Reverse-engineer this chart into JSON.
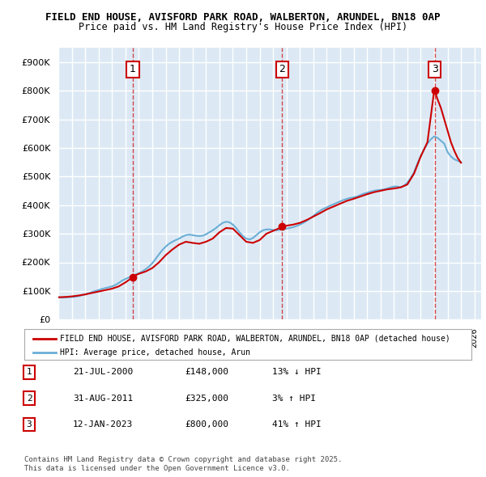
{
  "title_line1": "FIELD END HOUSE, AVISFORD PARK ROAD, WALBERTON, ARUNDEL, BN18 0AP",
  "title_line2": "Price paid vs. HM Land Registry's House Price Index (HPI)",
  "ylabel": "£",
  "ylim": [
    0,
    950000
  ],
  "yticks": [
    0,
    100000,
    200000,
    300000,
    400000,
    500000,
    600000,
    700000,
    800000,
    900000
  ],
  "ytick_labels": [
    "£0",
    "£100K",
    "£200K",
    "£300K",
    "£400K",
    "£500K",
    "£600K",
    "£700K",
    "£800K",
    "£900K"
  ],
  "xlim_start": 1995.0,
  "xlim_end": 2026.5,
  "background_color": "#ffffff",
  "plot_bg_color": "#dce9f5",
  "grid_color": "#ffffff",
  "transactions": [
    {
      "year": 2000.55,
      "price": 148000,
      "label": "1",
      "direction": "↓",
      "pct": "13%",
      "date": "21-JUL-2000"
    },
    {
      "year": 2011.67,
      "price": 325000,
      "label": "2",
      "direction": "↑",
      "pct": "3%",
      "date": "31-AUG-2011"
    },
    {
      "year": 2023.04,
      "price": 800000,
      "label": "3",
      "direction": "↑",
      "pct": "41%",
      "date": "12-JAN-2023"
    }
  ],
  "hpi_color": "#6baed6",
  "price_color": "#cc0000",
  "legend_label_price": "FIELD END HOUSE, AVISFORD PARK ROAD, WALBERTON, ARUNDEL, BN18 0AP (detached house)",
  "legend_label_hpi": "HPI: Average price, detached house, Arun",
  "footer_line1": "Contains HM Land Registry data © Crown copyright and database right 2025.",
  "footer_line2": "This data is licensed under the Open Government Licence v3.0.",
  "table_rows": [
    {
      "num": "1",
      "date": "21-JUL-2000",
      "price": "£148,000",
      "change": "13% ↓ HPI"
    },
    {
      "num": "2",
      "date": "31-AUG-2011",
      "price": "£325,000",
      "change": "3% ↑ HPI"
    },
    {
      "num": "3",
      "date": "12-JAN-2023",
      "price": "£800,000",
      "change": "41% ↑ HPI"
    }
  ],
  "hpi_data": {
    "years": [
      1995.0,
      1995.25,
      1995.5,
      1995.75,
      1996.0,
      1996.25,
      1996.5,
      1996.75,
      1997.0,
      1997.25,
      1997.5,
      1997.75,
      1998.0,
      1998.25,
      1998.5,
      1998.75,
      1999.0,
      1999.25,
      1999.5,
      1999.75,
      2000.0,
      2000.25,
      2000.5,
      2000.75,
      2001.0,
      2001.25,
      2001.5,
      2001.75,
      2002.0,
      2002.25,
      2002.5,
      2002.75,
      2003.0,
      2003.25,
      2003.5,
      2003.75,
      2004.0,
      2004.25,
      2004.5,
      2004.75,
      2005.0,
      2005.25,
      2005.5,
      2005.75,
      2006.0,
      2006.25,
      2006.5,
      2006.75,
      2007.0,
      2007.25,
      2007.5,
      2007.75,
      2008.0,
      2008.25,
      2008.5,
      2008.75,
      2009.0,
      2009.25,
      2009.5,
      2009.75,
      2010.0,
      2010.25,
      2010.5,
      2010.75,
      2011.0,
      2011.25,
      2011.5,
      2011.75,
      2012.0,
      2012.25,
      2012.5,
      2012.75,
      2013.0,
      2013.25,
      2013.5,
      2013.75,
      2014.0,
      2014.25,
      2014.5,
      2014.75,
      2015.0,
      2015.25,
      2015.5,
      2015.75,
      2016.0,
      2016.25,
      2016.5,
      2016.75,
      2017.0,
      2017.25,
      2017.5,
      2017.75,
      2018.0,
      2018.25,
      2018.5,
      2018.75,
      2019.0,
      2019.25,
      2019.5,
      2019.75,
      2020.0,
      2020.25,
      2020.5,
      2020.75,
      2021.0,
      2021.25,
      2021.5,
      2021.75,
      2022.0,
      2022.25,
      2022.5,
      2022.75,
      2023.0,
      2023.25,
      2023.5,
      2023.75,
      2024.0,
      2024.25,
      2024.5,
      2024.75,
      2025.0
    ],
    "values": [
      78000,
      77000,
      77500,
      78000,
      79000,
      80000,
      82000,
      85000,
      88000,
      92000,
      96000,
      100000,
      103000,
      107000,
      110000,
      113000,
      116000,
      121000,
      128000,
      136000,
      142000,
      147000,
      152000,
      157000,
      162000,
      168000,
      176000,
      185000,
      197000,
      212000,
      228000,
      243000,
      255000,
      265000,
      272000,
      278000,
      283000,
      290000,
      295000,
      297000,
      295000,
      293000,
      292000,
      293000,
      298000,
      305000,
      312000,
      320000,
      330000,
      338000,
      342000,
      340000,
      332000,
      320000,
      305000,
      292000,
      283000,
      280000,
      285000,
      295000,
      305000,
      312000,
      315000,
      315000,
      313000,
      312000,
      314000,
      318000,
      318000,
      320000,
      323000,
      327000,
      332000,
      338000,
      345000,
      353000,
      362000,
      372000,
      380000,
      387000,
      392000,
      398000,
      403000,
      408000,
      413000,
      418000,
      422000,
      425000,
      427000,
      430000,
      435000,
      440000,
      443000,
      447000,
      450000,
      452000,
      453000,
      455000,
      458000,
      462000,
      465000,
      465000,
      462000,
      468000,
      478000,
      495000,
      515000,
      545000,
      572000,
      595000,
      615000,
      630000,
      640000,
      635000,
      625000,
      615000,
      585000,
      570000,
      560000,
      555000,
      550000
    ]
  },
  "price_data": {
    "years": [
      1995.0,
      1995.5,
      1996.0,
      1996.5,
      1997.0,
      1997.5,
      1998.0,
      1998.5,
      1999.0,
      1999.5,
      2000.0,
      2000.55,
      2000.75,
      2001.0,
      2001.5,
      2002.0,
      2002.5,
      2003.0,
      2003.5,
      2004.0,
      2004.5,
      2005.0,
      2005.5,
      2006.0,
      2006.5,
      2007.0,
      2007.5,
      2008.0,
      2008.5,
      2009.0,
      2009.5,
      2010.0,
      2010.5,
      2011.0,
      2011.5,
      2011.67,
      2011.9,
      2012.0,
      2012.5,
      2013.0,
      2013.5,
      2014.0,
      2014.5,
      2015.0,
      2015.5,
      2016.0,
      2016.5,
      2017.0,
      2017.5,
      2018.0,
      2018.5,
      2019.0,
      2019.5,
      2020.0,
      2020.5,
      2021.0,
      2021.5,
      2022.0,
      2022.5,
      2023.0,
      2023.04,
      2023.25,
      2023.5,
      2023.75,
      2024.0,
      2024.25,
      2024.5,
      2024.75,
      2025.0
    ],
    "values": [
      78000,
      79000,
      81000,
      84000,
      88000,
      93000,
      98000,
      103000,
      108000,
      116000,
      130000,
      148000,
      155000,
      160000,
      168000,
      180000,
      200000,
      225000,
      245000,
      262000,
      272000,
      268000,
      265000,
      272000,
      283000,
      305000,
      320000,
      318000,
      295000,
      272000,
      268000,
      278000,
      300000,
      310000,
      320000,
      325000,
      328000,
      328000,
      332000,
      338000,
      348000,
      360000,
      372000,
      385000,
      395000,
      405000,
      415000,
      422000,
      430000,
      438000,
      445000,
      450000,
      455000,
      458000,
      462000,
      472000,
      510000,
      570000,
      620000,
      800000,
      800000,
      770000,
      740000,
      700000,
      660000,
      620000,
      590000,
      565000,
      548000
    ]
  }
}
